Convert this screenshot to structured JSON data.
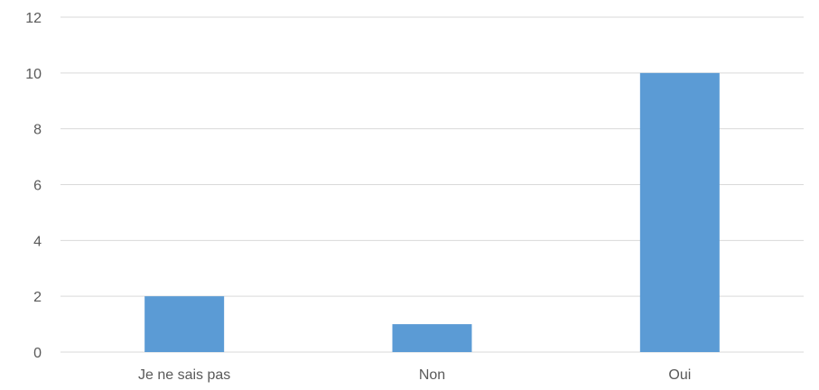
{
  "chart_data": {
    "type": "bar",
    "title": "",
    "xlabel": "",
    "ylabel": "",
    "categories": [
      "Je ne sais pas",
      "Non",
      "Oui"
    ],
    "values": [
      2,
      1,
      10
    ],
    "ylim": [
      0,
      12
    ],
    "yticks": [
      "0",
      "2",
      "4",
      "6",
      "8",
      "10",
      "12"
    ],
    "grid": true,
    "legend": "none",
    "bar_color": "#5b9bd5",
    "grid_color": "#d9d9d9",
    "text_color": "#595959"
  }
}
